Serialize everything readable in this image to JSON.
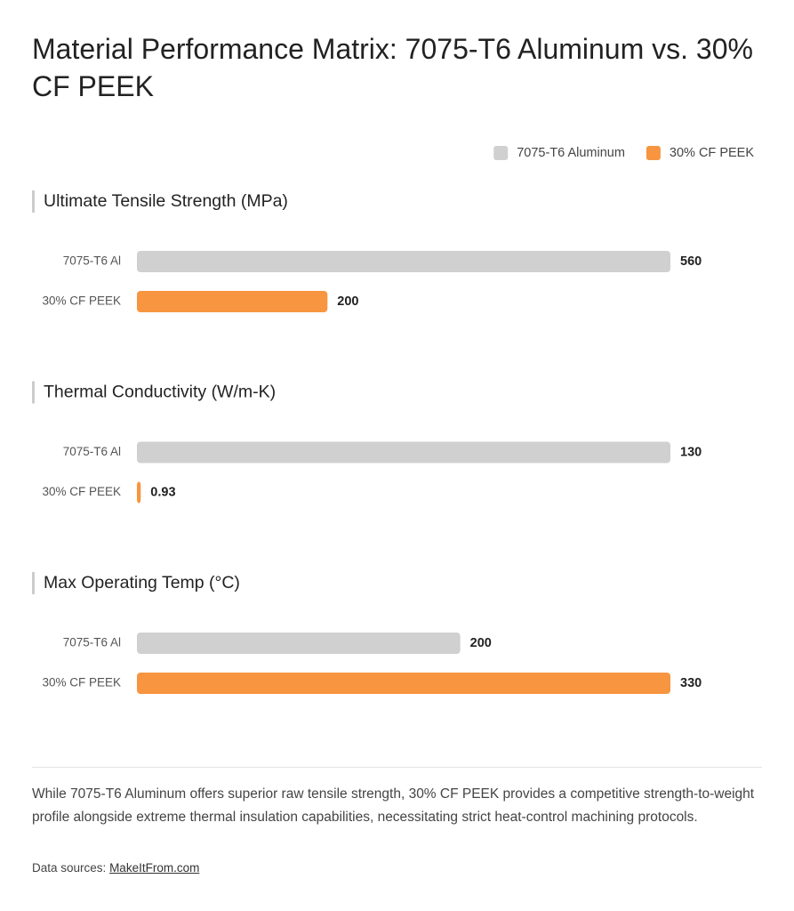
{
  "title": "Material Performance Matrix: 7075-T6 Aluminum vs. 30% CF PEEK",
  "legend": [
    {
      "name": "7075-T6 Aluminum",
      "color": "#d0d0d0"
    },
    {
      "name": "30% CF PEEK",
      "color": "#f79540"
    }
  ],
  "chart_data": [
    {
      "type": "bar",
      "orientation": "horizontal",
      "title": "Ultimate Tensile Strength (MPa)",
      "categories": [
        "7075-T6 Al",
        "30% CF PEEK"
      ],
      "values": [
        560,
        200
      ],
      "colors": [
        "#d0d0d0",
        "#f79540"
      ]
    },
    {
      "type": "bar",
      "orientation": "horizontal",
      "title": "Thermal Conductivity (W/m-K)",
      "categories": [
        "7075-T6 Al",
        "30% CF PEEK"
      ],
      "values": [
        130,
        0.93
      ],
      "colors": [
        "#d0d0d0",
        "#f79540"
      ]
    },
    {
      "type": "bar",
      "orientation": "horizontal",
      "title": "Max Operating Temp (°C)",
      "categories": [
        "7075-T6 Al",
        "30% CF PEEK"
      ],
      "values": [
        200,
        330
      ],
      "colors": [
        "#d0d0d0",
        "#f79540"
      ]
    }
  ],
  "footnote": "While 7075-T6 Aluminum offers superior raw tensile strength, 30% CF PEEK provides a competitive strength-to-weight profile alongside extreme thermal insulation capabilities, necessitating strict heat-control machining protocols.",
  "source": {
    "label": "Data sources:",
    "link": "MakeItFrom.com"
  }
}
